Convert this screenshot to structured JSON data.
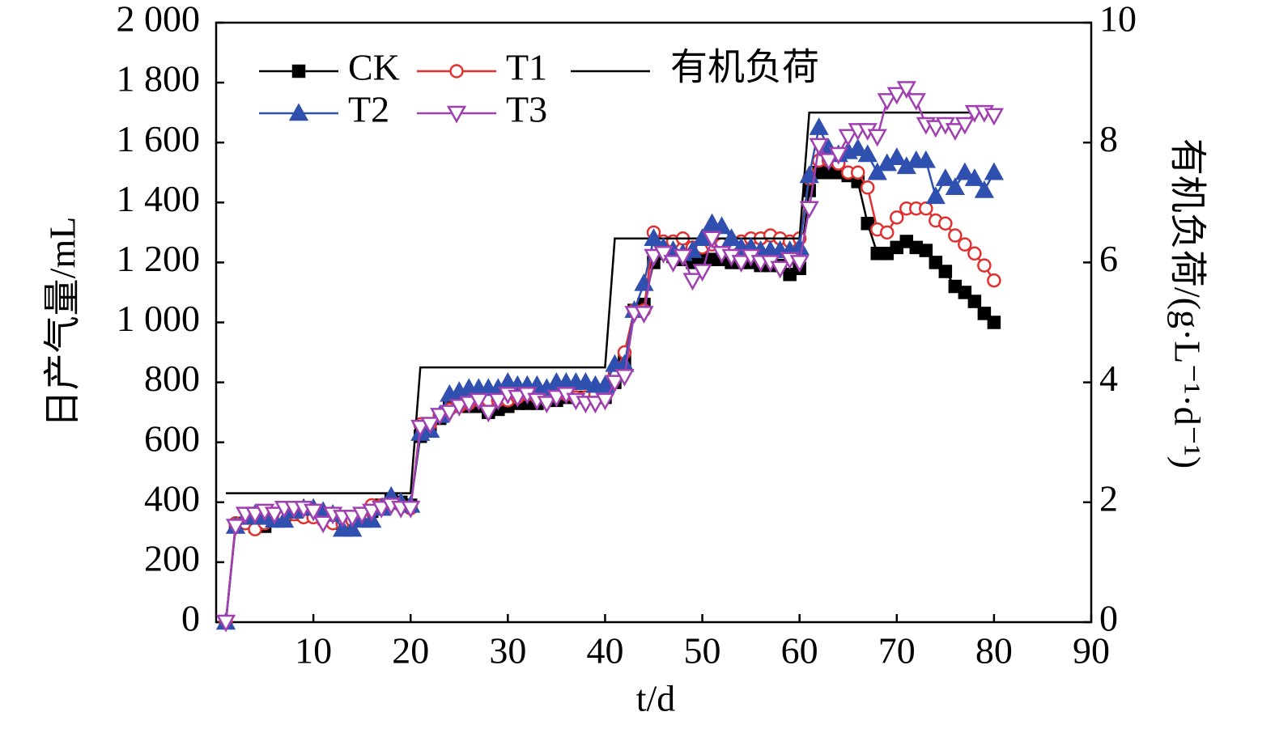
{
  "chart_data": {
    "type": "line",
    "xlabel": "t/d",
    "ylabel": "日产气量/mL",
    "y2label": "有机负荷/(g·L⁻¹·d⁻¹)",
    "xlim": [
      0,
      90
    ],
    "xticks": [
      10,
      20,
      30,
      40,
      50,
      60,
      70,
      80,
      90
    ],
    "ylim": [
      0,
      2000
    ],
    "yticks": [
      0,
      200,
      400,
      600,
      800,
      {
        "value": 1000,
        "label": "1 000"
      },
      {
        "value": 1200,
        "label": "1 200"
      },
      {
        "value": 1400,
        "label": "1 400"
      },
      {
        "value": 1600,
        "label": "1 600"
      },
      {
        "value": 1800,
        "label": "1 800"
      },
      {
        "value": 2000,
        "label": "2 000"
      }
    ],
    "y2lim": [
      0,
      10
    ],
    "y2ticks": [
      0,
      2,
      4,
      6,
      8,
      10
    ],
    "series": [
      {
        "name": "CK",
        "color": "#000000",
        "marker": "square",
        "x": [
          1,
          2,
          3,
          4,
          5,
          6,
          7,
          8,
          9,
          10,
          11,
          12,
          13,
          14,
          15,
          16,
          17,
          18,
          19,
          20,
          21,
          22,
          23,
          24,
          25,
          26,
          27,
          28,
          29,
          30,
          31,
          32,
          33,
          34,
          35,
          36,
          37,
          38,
          39,
          40,
          41,
          42,
          43,
          44,
          45,
          46,
          47,
          48,
          49,
          50,
          51,
          52,
          53,
          54,
          55,
          56,
          57,
          58,
          59,
          60,
          61,
          62,
          63,
          64,
          65,
          66,
          67,
          68,
          69,
          70,
          71,
          72,
          73,
          74,
          75,
          76,
          77,
          78,
          79,
          80
        ],
        "values": [
          0,
          320,
          330,
          320,
          320,
          340,
          350,
          360,
          360,
          370,
          360,
          350,
          330,
          340,
          350,
          370,
          390,
          410,
          400,
          390,
          620,
          640,
          680,
          720,
          730,
          720,
          720,
          700,
          710,
          720,
          730,
          730,
          730,
          740,
          740,
          750,
          750,
          750,
          750,
          750,
          800,
          870,
          1040,
          1060,
          1200,
          1230,
          1220,
          1210,
          1200,
          1210,
          1210,
          1210,
          1200,
          1200,
          1200,
          1190,
          1190,
          1190,
          1160,
          1180,
          1440,
          1500,
          1500,
          1500,
          1490,
          1470,
          1330,
          1230,
          1230,
          1250,
          1270,
          1250,
          1240,
          1200,
          1170,
          1120,
          1100,
          1070,
          1030,
          1000
        ]
      },
      {
        "name": "T1",
        "color": "#e03030",
        "marker": "circle",
        "x": [
          1,
          2,
          3,
          4,
          5,
          6,
          7,
          8,
          9,
          10,
          11,
          12,
          13,
          14,
          15,
          16,
          17,
          18,
          19,
          20,
          21,
          22,
          23,
          24,
          25,
          26,
          27,
          28,
          29,
          30,
          31,
          32,
          33,
          34,
          35,
          36,
          37,
          38,
          39,
          40,
          41,
          42,
          43,
          44,
          45,
          46,
          47,
          48,
          49,
          50,
          51,
          52,
          53,
          54,
          55,
          56,
          57,
          58,
          59,
          60,
          61,
          62,
          63,
          64,
          65,
          66,
          67,
          68,
          69,
          70,
          71,
          72,
          73,
          74,
          75,
          76,
          77,
          78,
          79,
          80
        ],
        "values": [
          0,
          330,
          330,
          310,
          330,
          340,
          350,
          360,
          350,
          350,
          340,
          330,
          330,
          340,
          350,
          390,
          390,
          400,
          390,
          380,
          660,
          660,
          690,
          710,
          720,
          730,
          740,
          740,
          740,
          740,
          750,
          760,
          750,
          760,
          760,
          760,
          750,
          750,
          760,
          760,
          830,
          900,
          1040,
          1040,
          1300,
          1270,
          1270,
          1280,
          1250,
          1250,
          1260,
          1260,
          1260,
          1270,
          1280,
          1280,
          1290,
          1280,
          1270,
          1280,
          1480,
          1540,
          1540,
          1530,
          1500,
          1500,
          1450,
          1310,
          1300,
          1350,
          1380,
          1380,
          1380,
          1340,
          1330,
          1290,
          1260,
          1230,
          1190,
          1140
        ]
      },
      {
        "name": "有机负荷",
        "color": "#000000",
        "marker": "none",
        "axis": "y2",
        "x": [
          1,
          20,
          21,
          40,
          41,
          60,
          61,
          80
        ],
        "values": [
          2.15,
          2.15,
          4.25,
          4.25,
          6.4,
          6.4,
          8.5,
          8.5
        ]
      },
      {
        "name": "T2",
        "color": "#3050b0",
        "marker": "triangle-up",
        "x": [
          1,
          2,
          3,
          4,
          5,
          6,
          7,
          8,
          9,
          10,
          11,
          12,
          13,
          14,
          15,
          16,
          17,
          18,
          19,
          20,
          21,
          22,
          23,
          24,
          25,
          26,
          27,
          28,
          29,
          30,
          31,
          32,
          33,
          34,
          35,
          36,
          37,
          38,
          39,
          40,
          41,
          42,
          43,
          44,
          45,
          46,
          47,
          48,
          49,
          50,
          51,
          52,
          53,
          54,
          55,
          56,
          57,
          58,
          59,
          60,
          61,
          62,
          63,
          64,
          65,
          66,
          67,
          68,
          69,
          70,
          71,
          72,
          73,
          74,
          75,
          76,
          77,
          78,
          79,
          80
        ],
        "values": [
          0,
          320,
          350,
          360,
          350,
          340,
          340,
          370,
          380,
          380,
          370,
          360,
          310,
          310,
          340,
          340,
          380,
          420,
          400,
          390,
          630,
          640,
          690,
          760,
          770,
          780,
          780,
          780,
          780,
          800,
          790,
          790,
          790,
          780,
          800,
          800,
          800,
          800,
          790,
          790,
          860,
          860,
          1040,
          1130,
          1280,
          1250,
          1240,
          1230,
          1240,
          1280,
          1330,
          1320,
          1280,
          1250,
          1250,
          1240,
          1240,
          1240,
          1240,
          1250,
          1490,
          1650,
          1580,
          1560,
          1570,
          1580,
          1560,
          1500,
          1530,
          1550,
          1520,
          1540,
          1540,
          1420,
          1480,
          1450,
          1500,
          1480,
          1440,
          1500
        ]
      },
      {
        "name": "T3",
        "color": "#a040b0",
        "marker": "triangle-down",
        "x": [
          1,
          2,
          3,
          4,
          5,
          6,
          7,
          8,
          9,
          10,
          11,
          12,
          13,
          14,
          15,
          16,
          17,
          18,
          19,
          20,
          21,
          22,
          23,
          24,
          25,
          26,
          27,
          28,
          29,
          30,
          31,
          32,
          33,
          34,
          35,
          36,
          37,
          38,
          39,
          40,
          41,
          42,
          43,
          44,
          45,
          46,
          47,
          48,
          49,
          50,
          51,
          52,
          53,
          54,
          55,
          56,
          57,
          58,
          59,
          60,
          61,
          62,
          63,
          64,
          65,
          66,
          67,
          68,
          69,
          70,
          71,
          72,
          73,
          74,
          75,
          76,
          77,
          78,
          79,
          80
        ],
        "values": [
          0,
          320,
          360,
          360,
          370,
          360,
          380,
          380,
          380,
          370,
          330,
          360,
          350,
          350,
          360,
          370,
          380,
          390,
          380,
          380,
          650,
          660,
          690,
          700,
          720,
          730,
          740,
          700,
          740,
          760,
          750,
          760,
          740,
          730,
          750,
          760,
          740,
          730,
          730,
          740,
          800,
          820,
          1030,
          1030,
          1220,
          1230,
          1200,
          1220,
          1140,
          1170,
          1280,
          1230,
          1220,
          1200,
          1220,
          1200,
          1200,
          1180,
          1210,
          1200,
          1380,
          1590,
          1540,
          1560,
          1620,
          1640,
          1640,
          1620,
          1740,
          1760,
          1780,
          1740,
          1660,
          1650,
          1660,
          1640,
          1660,
          1700,
          1700,
          1690
        ]
      }
    ]
  }
}
